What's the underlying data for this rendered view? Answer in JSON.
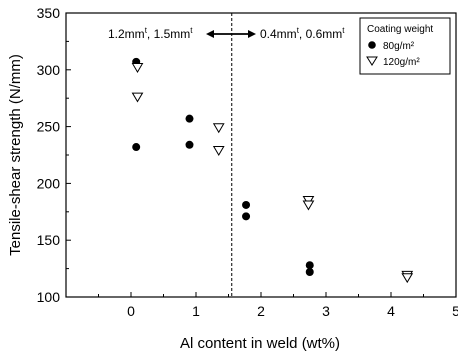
{
  "chart_data": {
    "type": "scatter",
    "xlabel": "Al content in weld (wt%)",
    "ylabel": "Tensile-shear strength (N/mm)",
    "xlim": [
      -1,
      5
    ],
    "ylim": [
      100,
      350
    ],
    "xticks": [
      "0",
      "1",
      "2",
      "3",
      "4",
      "5"
    ],
    "yticks": [
      "100",
      "150",
      "200",
      "250",
      "300",
      "350"
    ],
    "divider_x": 1.55,
    "annotations": {
      "left": {
        "base": "1.2mm",
        "sup": "t",
        "sep": ", ",
        "base2": "1.5mm",
        "sup2": "t"
      },
      "arrow": "↔",
      "right": {
        "base": "0.4mm",
        "sup": "t",
        "sep": ", ",
        "base2": "0.6mm",
        "sup2": "t"
      }
    },
    "legend": {
      "title": "Coating weight",
      "placement": "top-right",
      "entries": [
        {
          "label": "80g/m²",
          "marker": "filled-circle"
        },
        {
          "label": "120g/m²",
          "marker": "open-triangle-down"
        }
      ]
    },
    "series": [
      {
        "name": "80g/m²",
        "marker": "filled-circle",
        "color": "#000000",
        "points": [
          {
            "x": 0.08,
            "y": 307
          },
          {
            "x": 0.08,
            "y": 232
          },
          {
            "x": 0.9,
            "y": 257
          },
          {
            "x": 0.9,
            "y": 234
          },
          {
            "x": 1.77,
            "y": 181
          },
          {
            "x": 1.77,
            "y": 171
          },
          {
            "x": 2.75,
            "y": 128
          },
          {
            "x": 2.75,
            "y": 122
          }
        ]
      },
      {
        "name": "120g/m²",
        "marker": "open-triangle-down",
        "color": "#000000",
        "points": [
          {
            "x": 0.1,
            "y": 302
          },
          {
            "x": 0.1,
            "y": 276
          },
          {
            "x": 1.35,
            "y": 249
          },
          {
            "x": 1.35,
            "y": 229
          },
          {
            "x": 2.73,
            "y": 185
          },
          {
            "x": 2.73,
            "y": 181
          },
          {
            "x": 4.25,
            "y": 119
          },
          {
            "x": 4.25,
            "y": 117
          }
        ]
      }
    ]
  }
}
